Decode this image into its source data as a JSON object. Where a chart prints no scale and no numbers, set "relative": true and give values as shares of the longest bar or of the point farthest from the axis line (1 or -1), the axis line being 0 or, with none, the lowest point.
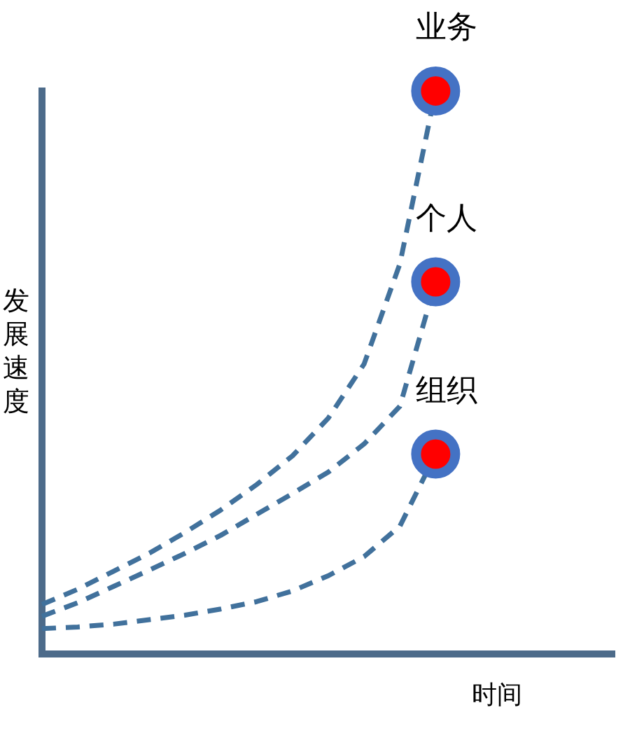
{
  "chart_data": {
    "type": "line",
    "relative": true,
    "xlabel": "时间",
    "ylabel": "发展速度",
    "line_style": "dashed",
    "categories": [
      null,
      null,
      null,
      null,
      null,
      null,
      null,
      null,
      null,
      null,
      null,
      null,
      null,
      null,
      null,
      null,
      null
    ],
    "series": [
      {
        "name": "业务",
        "color": "#41719c",
        "values": [
          0.088,
          0.115,
          0.147,
          0.179,
          0.216,
          0.256,
          0.301,
          0.352,
          0.419,
          0.515,
          0.693,
          1,
          null,
          null,
          null,
          null,
          null
        ]
      },
      {
        "name": "个人",
        "color": "#41719c",
        "values": [
          0.067,
          0.091,
          0.12,
          0.149,
          0.179,
          0.211,
          0.248,
          0.285,
          0.323,
          0.373,
          0.44,
          0.661,
          null,
          null,
          null,
          null,
          null
        ]
      },
      {
        "name": "组织",
        "color": "#41719c",
        "values": [
          0.045,
          0.048,
          0.053,
          0.061,
          0.069,
          0.08,
          0.093,
          0.112,
          0.139,
          0.173,
          0.227,
          0.355,
          null,
          null,
          null,
          null,
          null
        ]
      }
    ]
  }
}
